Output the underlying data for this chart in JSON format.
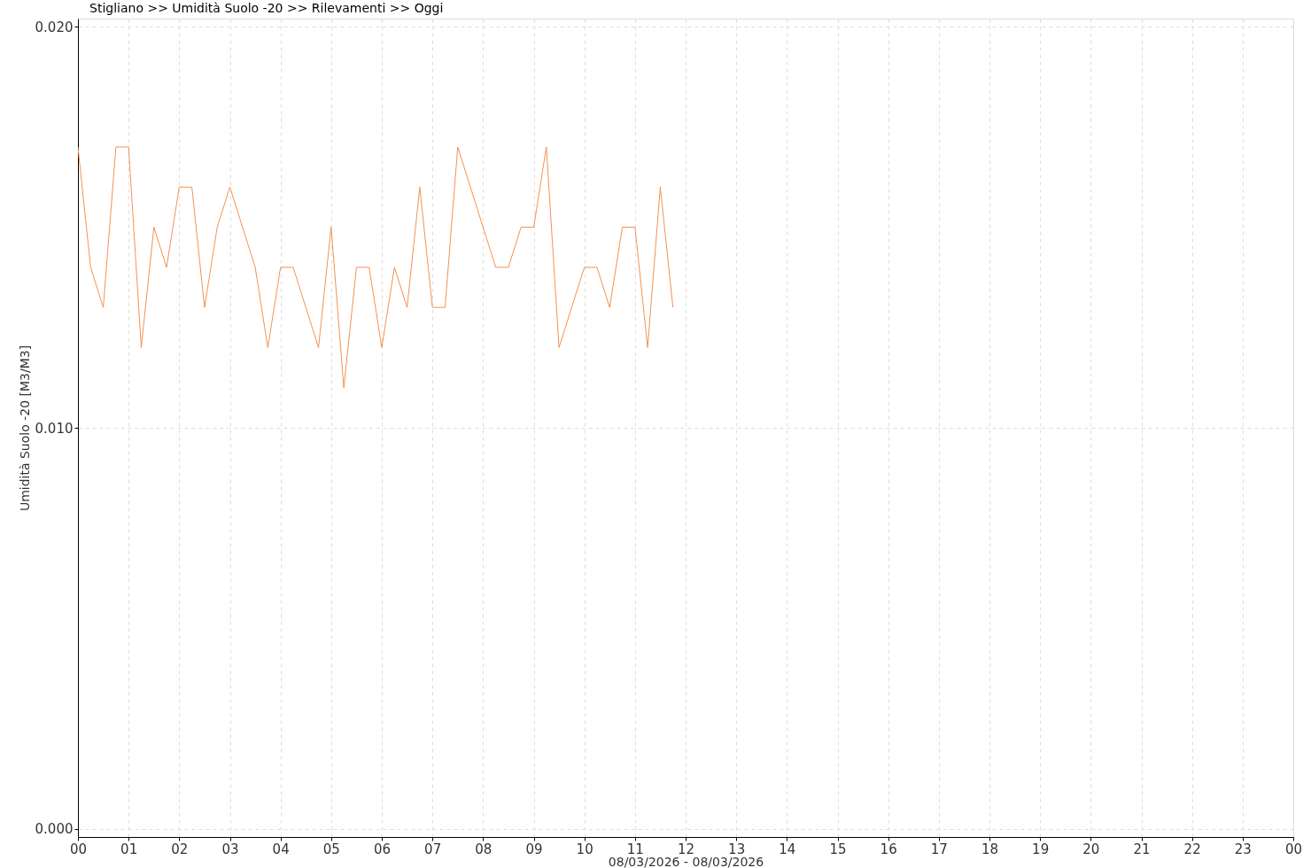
{
  "chart_data": {
    "type": "line",
    "title": "Stigliano >> Umidità Suolo -20 >> Rilevamenti >> Oggi",
    "xlabel": "08/03/2026 - 08/03/2026",
    "ylabel": "Umidità Suolo -20 [M3/M3]",
    "x": [
      0,
      0.25,
      0.5,
      0.75,
      1,
      1.25,
      1.5,
      1.75,
      2,
      2.25,
      2.5,
      2.75,
      3,
      3.5,
      3.75,
      4,
      4.25,
      4.75,
      5,
      5.25,
      5.5,
      5.75,
      6,
      6.25,
      6.5,
      6.75,
      7,
      7.25,
      7.5,
      8.25,
      8.5,
      8.75,
      9,
      9.25,
      9.5,
      10,
      10.25,
      10.5,
      10.75,
      11,
      11.25,
      11.5,
      11.75
    ],
    "series": [
      {
        "color": "#f39150",
        "values": [
          0.017,
          0.014,
          0.013,
          0.017,
          0.017,
          0.012,
          0.015,
          0.014,
          0.016,
          0.016,
          0.013,
          0.015,
          0.016,
          0.014,
          0.012,
          0.014,
          0.014,
          0.012,
          0.015,
          0.011,
          0.014,
          0.014,
          0.012,
          0.014,
          0.013,
          0.016,
          0.013,
          0.013,
          0.017,
          0.014,
          0.014,
          0.015,
          0.015,
          0.017,
          0.012,
          0.014,
          0.014,
          0.013,
          0.015,
          0.015,
          0.012,
          0.016,
          0.013
        ]
      }
    ],
    "xlim": [
      0,
      24
    ],
    "xticks": [
      {
        "value": 0,
        "label": "00"
      },
      {
        "value": 1,
        "label": "01"
      },
      {
        "value": 2,
        "label": "02"
      },
      {
        "value": 3,
        "label": "03"
      },
      {
        "value": 4,
        "label": "04"
      },
      {
        "value": 5,
        "label": "05"
      },
      {
        "value": 6,
        "label": "06"
      },
      {
        "value": 7,
        "label": "07"
      },
      {
        "value": 8,
        "label": "08"
      },
      {
        "value": 9,
        "label": "09"
      },
      {
        "value": 10,
        "label": "10"
      },
      {
        "value": 11,
        "label": "11"
      },
      {
        "value": 12,
        "label": "12"
      },
      {
        "value": 13,
        "label": "13"
      },
      {
        "value": 14,
        "label": "14"
      },
      {
        "value": 15,
        "label": "15"
      },
      {
        "value": 16,
        "label": "16"
      },
      {
        "value": 17,
        "label": "17"
      },
      {
        "value": 18,
        "label": "18"
      },
      {
        "value": 19,
        "label": "19"
      },
      {
        "value": 20,
        "label": "20"
      },
      {
        "value": 21,
        "label": "21"
      },
      {
        "value": 22,
        "label": "22"
      },
      {
        "value": 23,
        "label": "23"
      },
      {
        "value": 24,
        "label": "00"
      }
    ],
    "ylim": [
      -0.0002,
      0.0202
    ],
    "yticks": [
      {
        "value": 0,
        "label": "0.000"
      },
      {
        "value": 0.01,
        "label": "0.010"
      },
      {
        "value": 0.02,
        "label": "0.020"
      }
    ],
    "grid": true,
    "line_style": "solid",
    "marker": "none"
  }
}
